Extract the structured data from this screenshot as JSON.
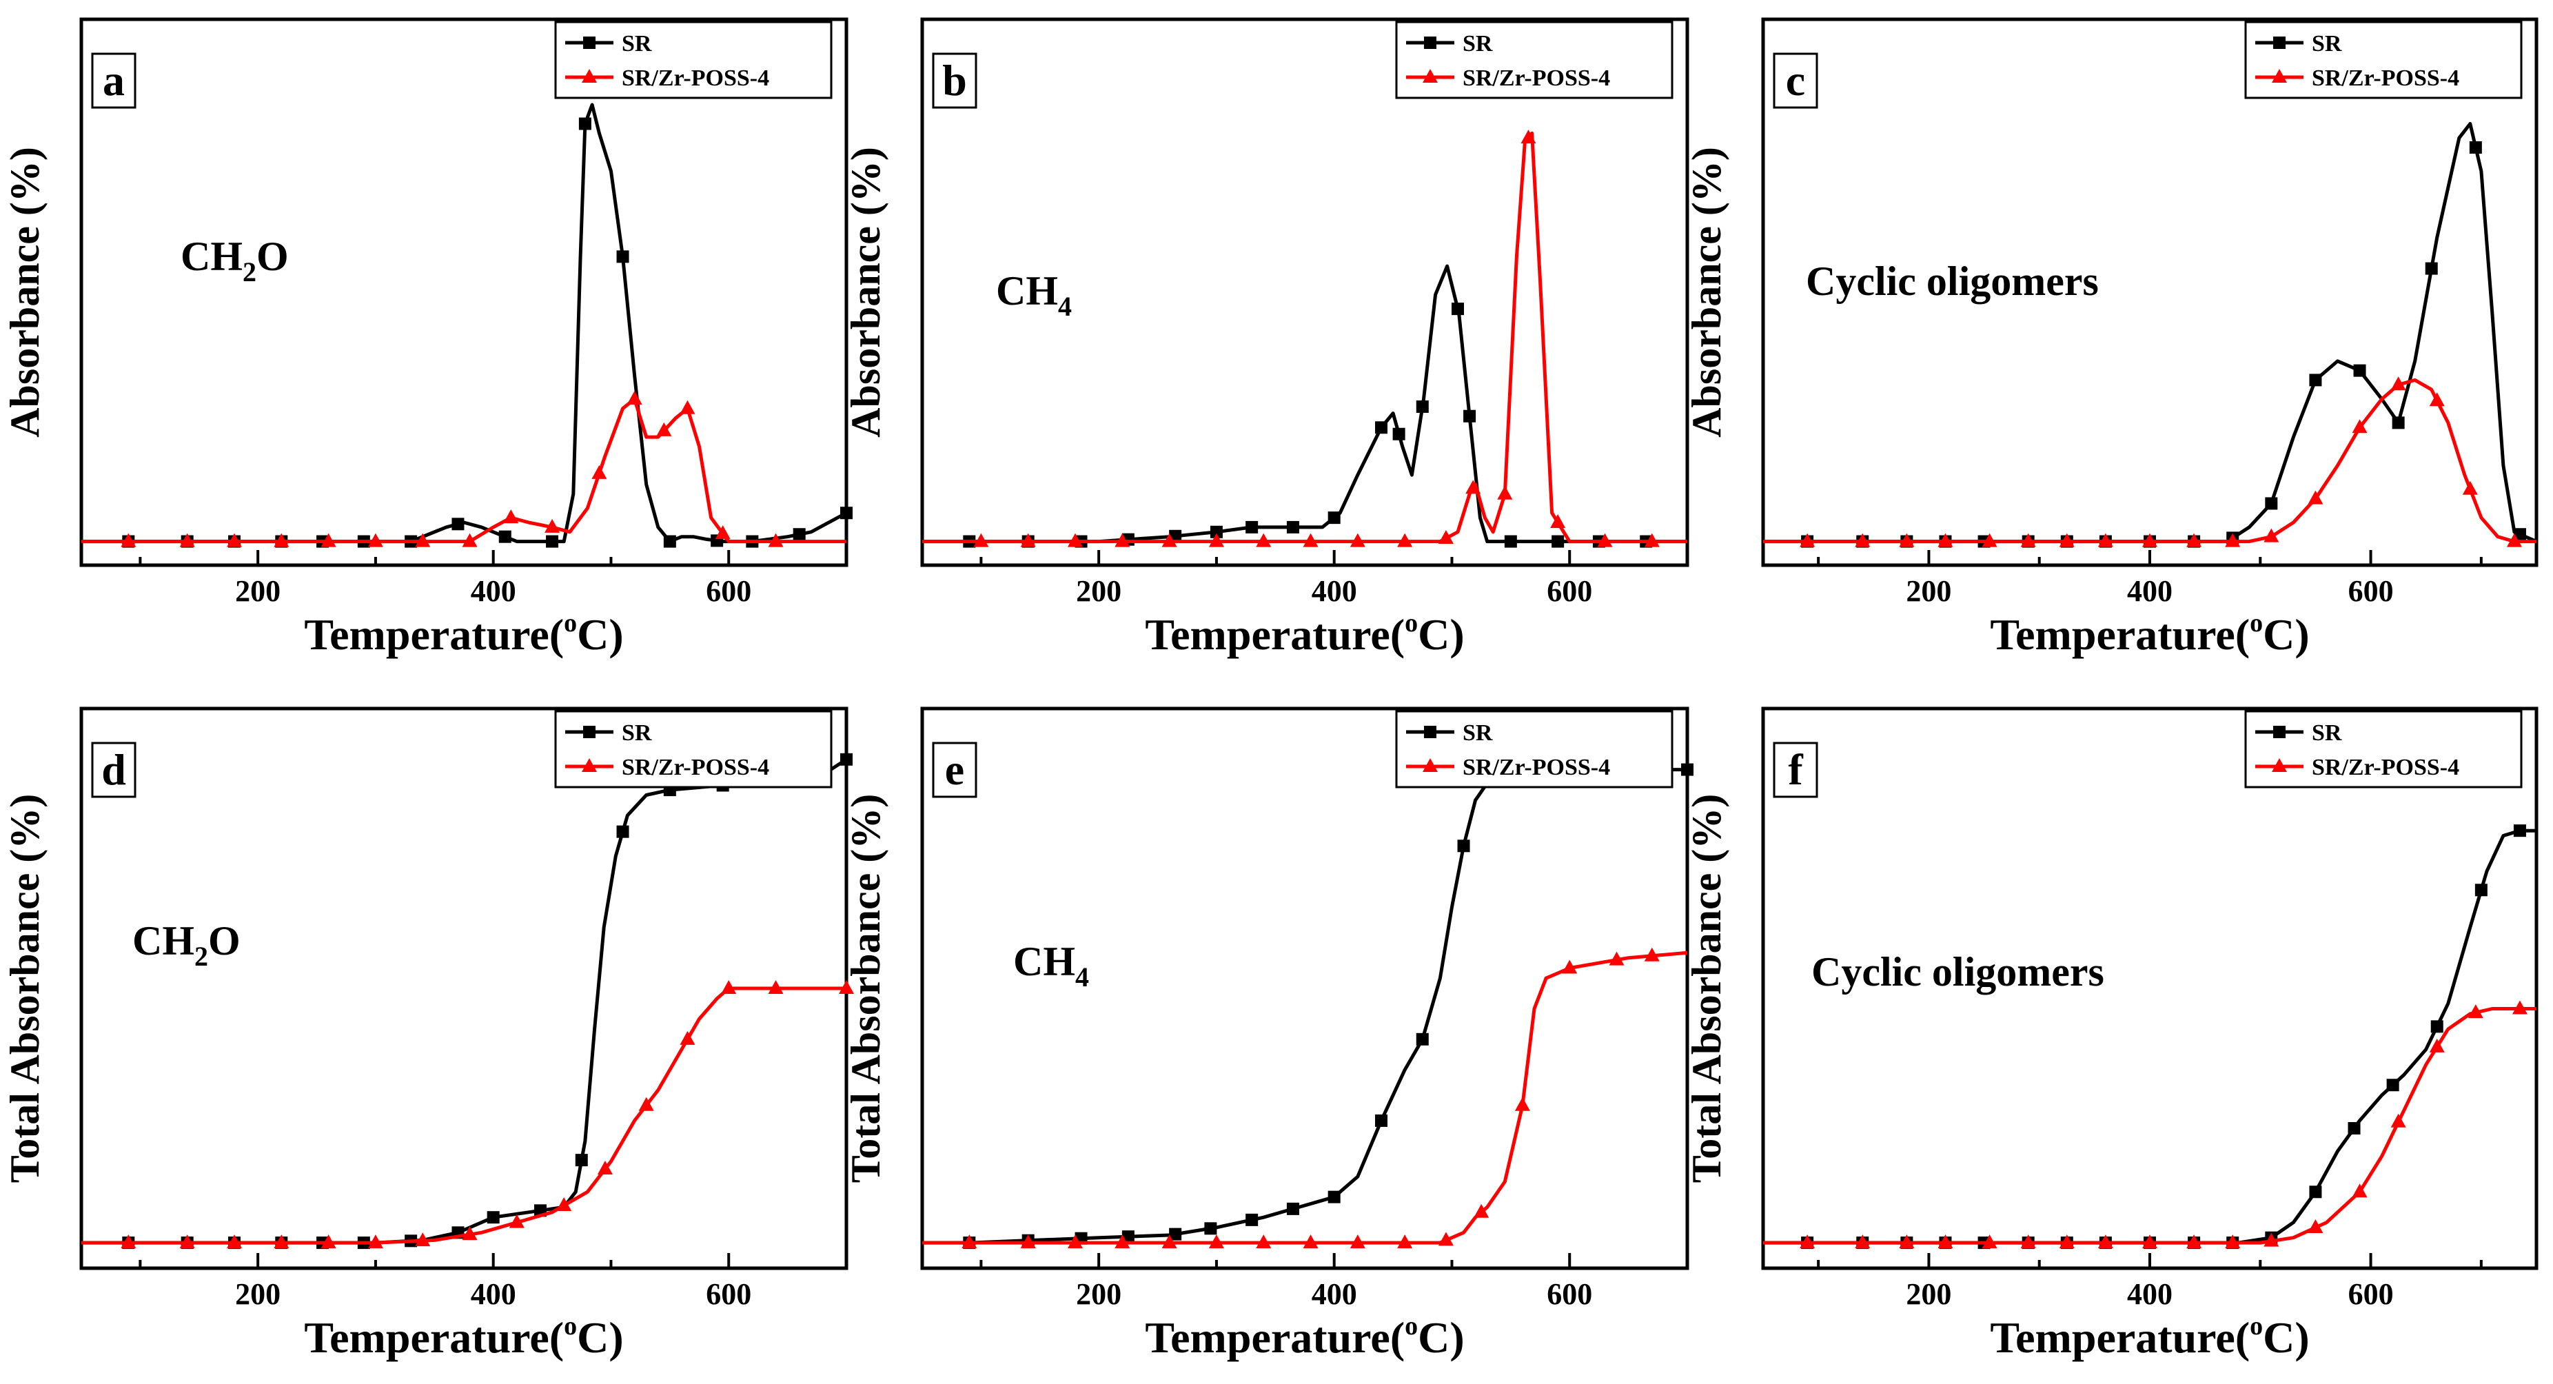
{
  "colors": {
    "SR": "#000000",
    "SR/Zr-POSS-4": "#ff0000"
  },
  "chart_data": [
    {
      "panel": "a",
      "type": "line",
      "species_main": "CH",
      "species_sub": "2",
      "species_tail": "O",
      "xlabel": "Temperature",
      "xlabel_unit_pre": "(",
      "xlabel_unit_sup": "o",
      "xlabel_unit_post": "C)",
      "ylabel": "Absorbance  (%)",
      "xlim": [
        50,
        700
      ],
      "ylim": [
        -0.05,
        1.1
      ],
      "xticks": [
        200,
        400,
        600
      ],
      "legend_position": "top-right",
      "series": [
        {
          "name": "SR",
          "color": "#000000",
          "marker": "square",
          "x": [
            50,
            90,
            140,
            180,
            220,
            260,
            300,
            330,
            360,
            375,
            390,
            420,
            445,
            460,
            468,
            474,
            478,
            484,
            490,
            500,
            510,
            520,
            530,
            540,
            550,
            560,
            570,
            580,
            595,
            620,
            650,
            670,
            700
          ],
          "y": [
            0.0,
            0.0,
            0.0,
            0.0,
            0.0,
            0.0,
            0.0,
            0.0,
            0.03,
            0.04,
            0.03,
            0.0,
            0.0,
            0.0,
            0.1,
            0.6,
            0.88,
            0.92,
            0.86,
            0.78,
            0.6,
            0.35,
            0.12,
            0.03,
            0.0,
            0.01,
            0.01,
            0.005,
            0.0,
            0.0,
            0.01,
            0.02,
            0.06
          ],
          "markers_x": [
            90,
            140,
            180,
            220,
            255,
            290,
            330,
            370,
            410,
            450,
            478,
            510,
            550,
            590,
            620,
            660,
            700
          ]
        },
        {
          "name": "SR/Zr-POSS-4",
          "color": "#ff0000",
          "marker": "triangle",
          "x": [
            50,
            90,
            140,
            180,
            220,
            260,
            300,
            340,
            380,
            400,
            415,
            430,
            450,
            465,
            480,
            495,
            510,
            520,
            530,
            540,
            555,
            565,
            575,
            585,
            600,
            640,
            700
          ],
          "y": [
            0.0,
            0.0,
            0.0,
            0.0,
            0.0,
            0.0,
            0.0,
            0.0,
            0.0,
            0.03,
            0.05,
            0.04,
            0.03,
            0.02,
            0.07,
            0.18,
            0.28,
            0.3,
            0.22,
            0.22,
            0.26,
            0.28,
            0.2,
            0.05,
            0.0,
            0.0,
            0.0
          ],
          "markers_x": [
            90,
            140,
            180,
            220,
            260,
            300,
            340,
            380,
            415,
            450,
            490,
            520,
            545,
            565,
            595,
            640
          ]
        }
      ]
    },
    {
      "panel": "b",
      "type": "line",
      "species_main": "CH",
      "species_sub": "4",
      "species_tail": "",
      "xlabel": "Temperature",
      "xlabel_unit_pre": "(",
      "xlabel_unit_sup": "o",
      "xlabel_unit_post": "C)",
      "ylabel": "Absorbance  (%)",
      "xlim": [
        50,
        700
      ],
      "ylim": [
        -0.05,
        1.1
      ],
      "xticks": [
        200,
        400,
        600
      ],
      "legend_position": "top-right",
      "series": [
        {
          "name": "SR",
          "color": "#000000",
          "marker": "square",
          "x": [
            50,
            90,
            140,
            200,
            260,
            300,
            330,
            370,
            390,
            405,
            420,
            440,
            450,
            458,
            466,
            476,
            486,
            496,
            506,
            516,
            524,
            530,
            545,
            600,
            650,
            700
          ],
          "y": [
            0.0,
            0.0,
            0.0,
            0.0,
            0.01,
            0.02,
            0.03,
            0.03,
            0.03,
            0.06,
            0.14,
            0.24,
            0.27,
            0.2,
            0.14,
            0.3,
            0.52,
            0.58,
            0.48,
            0.24,
            0.05,
            0.0,
            0.0,
            0.0,
            0.0,
            0.0
          ],
          "markers_x": [
            90,
            140,
            185,
            225,
            265,
            300,
            330,
            365,
            400,
            440,
            455,
            475,
            505,
            515,
            550,
            590,
            625,
            665
          ]
        },
        {
          "name": "SR/Zr-POSS-4",
          "color": "#ff0000",
          "marker": "triangle",
          "x": [
            50,
            100,
            200,
            300,
            400,
            490,
            505,
            515,
            520,
            528,
            535,
            545,
            555,
            562,
            568,
            575,
            585,
            600,
            650,
            700
          ],
          "y": [
            0.0,
            0.0,
            0.0,
            0.0,
            0.0,
            0.0,
            0.02,
            0.1,
            0.12,
            0.05,
            0.02,
            0.1,
            0.6,
            0.84,
            0.86,
            0.55,
            0.06,
            0.0,
            0.0,
            0.0
          ],
          "markers_x": [
            100,
            140,
            180,
            220,
            260,
            300,
            340,
            380,
            420,
            460,
            495,
            518,
            545,
            565,
            590,
            630,
            670
          ]
        }
      ]
    },
    {
      "panel": "c",
      "type": "line",
      "species_main": "Cyclic oligomers",
      "species_sub": "",
      "species_tail": "",
      "xlabel": "Temperature",
      "xlabel_unit_pre": "(",
      "xlabel_unit_sup": "o",
      "xlabel_unit_post": "C)",
      "ylabel": "Absorbance  (%)",
      "xlim": [
        50,
        750
      ],
      "ylim": [
        -0.05,
        1.1
      ],
      "xticks": [
        200,
        400,
        600
      ],
      "legend_position": "top-right",
      "series": [
        {
          "name": "SR",
          "color": "#000000",
          "marker": "square",
          "x": [
            50,
            90,
            200,
            300,
            400,
            470,
            490,
            510,
            530,
            550,
            570,
            590,
            610,
            625,
            640,
            660,
            680,
            690,
            700,
            710,
            720,
            730,
            750
          ],
          "y": [
            0.0,
            0.0,
            0.0,
            0.0,
            0.0,
            0.0,
            0.03,
            0.08,
            0.22,
            0.34,
            0.38,
            0.36,
            0.3,
            0.25,
            0.38,
            0.64,
            0.85,
            0.88,
            0.78,
            0.48,
            0.16,
            0.02,
            0.0
          ],
          "markers_x": [
            90,
            140,
            180,
            215,
            250,
            290,
            325,
            360,
            400,
            440,
            475,
            510,
            550,
            590,
            625,
            655,
            695,
            735
          ]
        },
        {
          "name": "SR/Zr-POSS-4",
          "color": "#ff0000",
          "marker": "triangle",
          "x": [
            50,
            90,
            200,
            300,
            400,
            490,
            510,
            530,
            550,
            570,
            590,
            610,
            625,
            640,
            655,
            670,
            685,
            700,
            715,
            730,
            750
          ],
          "y": [
            0.0,
            0.0,
            0.0,
            0.0,
            0.0,
            0.0,
            0.01,
            0.04,
            0.09,
            0.16,
            0.24,
            0.3,
            0.33,
            0.34,
            0.32,
            0.25,
            0.14,
            0.05,
            0.01,
            0.0,
            0.0
          ],
          "markers_x": [
            90,
            140,
            180,
            215,
            255,
            290,
            325,
            360,
            400,
            440,
            475,
            510,
            550,
            590,
            625,
            660,
            690,
            730
          ]
        }
      ]
    },
    {
      "panel": "d",
      "type": "line",
      "species_main": "CH",
      "species_sub": "2",
      "species_tail": "O",
      "xlabel": "Temperature",
      "xlabel_unit_pre": "(",
      "xlabel_unit_sup": "o",
      "xlabel_unit_post": "C)",
      "ylabel": "Total Absorbance (%)",
      "xlim": [
        50,
        700
      ],
      "ylim": [
        -0.05,
        1.05
      ],
      "xticks": [
        200,
        400,
        600
      ],
      "legend_position": "top-right",
      "series": [
        {
          "name": "SR",
          "color": "#000000",
          "marker": "square",
          "x": [
            50,
            90,
            200,
            300,
            340,
            370,
            400,
            430,
            460,
            470,
            478,
            486,
            494,
            504,
            514,
            530,
            550,
            600,
            650,
            680,
            700
          ],
          "y": [
            0.0,
            0.0,
            0.0,
            0.0,
            0.005,
            0.02,
            0.05,
            0.06,
            0.07,
            0.1,
            0.2,
            0.42,
            0.62,
            0.76,
            0.84,
            0.88,
            0.89,
            0.9,
            0.91,
            0.92,
            0.95
          ],
          "markers_x": [
            90,
            140,
            180,
            220,
            255,
            290,
            330,
            370,
            400,
            440,
            475,
            510,
            550,
            595,
            640,
            700
          ]
        },
        {
          "name": "SR/Zr-POSS-4",
          "color": "#ff0000",
          "marker": "triangle",
          "x": [
            50,
            90,
            200,
            300,
            350,
            390,
            420,
            450,
            480,
            500,
            520,
            540,
            560,
            575,
            590,
            600,
            650,
            700
          ],
          "y": [
            0.0,
            0.0,
            0.0,
            0.0,
            0.005,
            0.02,
            0.04,
            0.06,
            0.1,
            0.16,
            0.24,
            0.3,
            0.38,
            0.44,
            0.48,
            0.5,
            0.5,
            0.5
          ],
          "markers_x": [
            90,
            140,
            180,
            220,
            260,
            300,
            340,
            380,
            420,
            460,
            495,
            530,
            565,
            600,
            640,
            700
          ]
        }
      ]
    },
    {
      "panel": "e",
      "type": "line",
      "species_main": "CH",
      "species_sub": "4",
      "species_tail": "",
      "xlabel": "Temperature",
      "xlabel_unit_pre": "(",
      "xlabel_unit_sup": "o",
      "xlabel_unit_post": "C)",
      "ylabel": "Total Absorbance (%)",
      "xlim": [
        50,
        700
      ],
      "ylim": [
        -0.05,
        1.05
      ],
      "xticks": [
        200,
        400,
        600
      ],
      "legend_position": "top-right",
      "series": [
        {
          "name": "SR",
          "color": "#000000",
          "marker": "square",
          "x": [
            50,
            90,
            200,
            260,
            300,
            340,
            370,
            400,
            420,
            440,
            460,
            475,
            490,
            500,
            510,
            520,
            535,
            550,
            600,
            650,
            700
          ],
          "y": [
            0.0,
            0.0,
            0.01,
            0.015,
            0.03,
            0.05,
            0.07,
            0.09,
            0.13,
            0.24,
            0.34,
            0.4,
            0.52,
            0.66,
            0.78,
            0.87,
            0.92,
            0.93,
            0.93,
            0.93,
            0.93
          ],
          "markers_x": [
            90,
            140,
            185,
            225,
            265,
            295,
            330,
            365,
            400,
            440,
            475,
            510,
            550,
            590,
            625,
            665,
            700
          ]
        },
        {
          "name": "SR/Zr-POSS-4",
          "color": "#ff0000",
          "marker": "triangle",
          "x": [
            50,
            90,
            200,
            300,
            400,
            490,
            510,
            520,
            530,
            545,
            560,
            570,
            580,
            590,
            600,
            650,
            700
          ],
          "y": [
            0.0,
            0.0,
            0.0,
            0.0,
            0.0,
            0.0,
            0.02,
            0.05,
            0.07,
            0.12,
            0.27,
            0.46,
            0.52,
            0.53,
            0.54,
            0.56,
            0.57
          ],
          "markers_x": [
            90,
            140,
            180,
            220,
            260,
            300,
            340,
            380,
            420,
            460,
            495,
            525,
            560,
            600,
            640,
            670
          ]
        }
      ]
    },
    {
      "panel": "f",
      "type": "line",
      "species_main": "Cyclic oligomers",
      "species_sub": "",
      "species_tail": "",
      "xlabel": "Temperature",
      "xlabel_unit_pre": "(",
      "xlabel_unit_sup": "o",
      "xlabel_unit_post": "C)",
      "ylabel": "Total Absorbance (%)",
      "xlim": [
        50,
        750
      ],
      "ylim": [
        -0.05,
        1.05
      ],
      "xticks": [
        200,
        400,
        600
      ],
      "legend_position": "top-right",
      "series": [
        {
          "name": "SR",
          "color": "#000000",
          "marker": "square",
          "x": [
            50,
            90,
            200,
            300,
            400,
            480,
            510,
            530,
            550,
            570,
            590,
            610,
            630,
            650,
            670,
            690,
            705,
            720,
            735,
            750
          ],
          "y": [
            0.0,
            0.0,
            0.0,
            0.0,
            0.0,
            0.0,
            0.01,
            0.04,
            0.1,
            0.18,
            0.24,
            0.29,
            0.33,
            0.38,
            0.47,
            0.62,
            0.73,
            0.8,
            0.81,
            0.81
          ],
          "markers_x": [
            90,
            140,
            180,
            215,
            250,
            290,
            325,
            360,
            400,
            440,
            475,
            510,
            550,
            585,
            620,
            660,
            700,
            735
          ]
        },
        {
          "name": "SR/Zr-POSS-4",
          "color": "#ff0000",
          "marker": "triangle",
          "x": [
            50,
            90,
            200,
            300,
            400,
            500,
            530,
            560,
            590,
            610,
            630,
            650,
            670,
            690,
            710,
            730,
            750
          ],
          "y": [
            0.0,
            0.0,
            0.0,
            0.0,
            0.0,
            0.0,
            0.01,
            0.04,
            0.1,
            0.17,
            0.26,
            0.35,
            0.42,
            0.45,
            0.46,
            0.46,
            0.46
          ],
          "markers_x": [
            90,
            140,
            180,
            215,
            255,
            290,
            325,
            360,
            400,
            440,
            475,
            510,
            550,
            590,
            625,
            660,
            695,
            735
          ]
        }
      ]
    }
  ]
}
